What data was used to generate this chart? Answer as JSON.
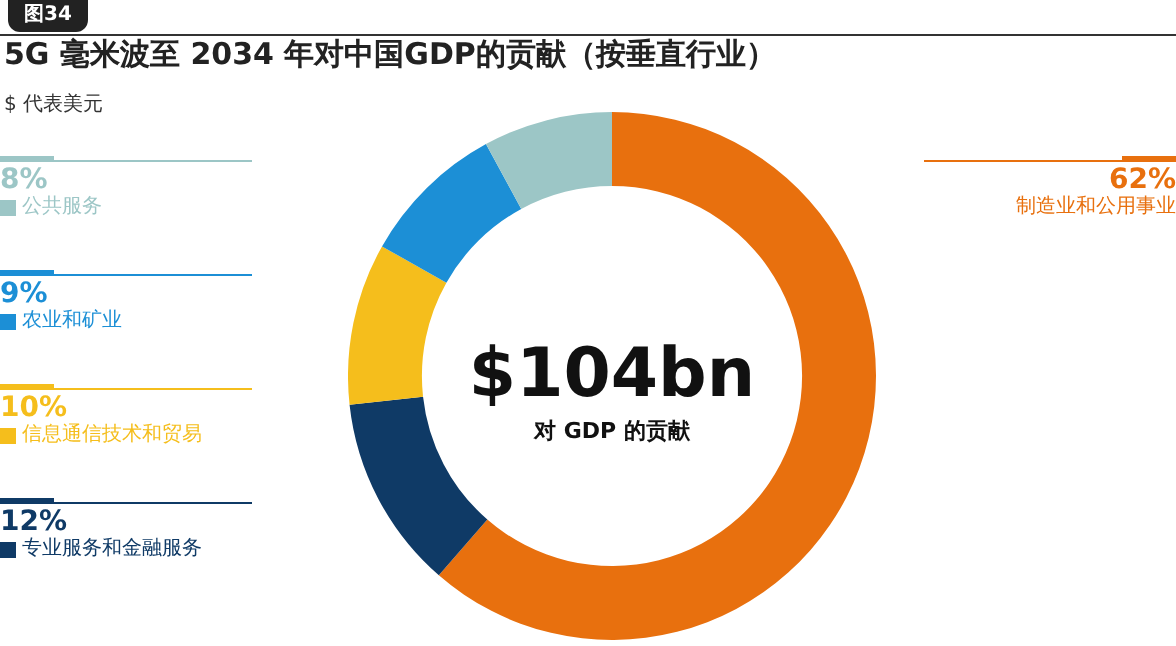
{
  "chart_data": {
    "type": "donut",
    "title": "5G 毫米波至 2034 年对中国GDP的贡献（按垂直行业）",
    "subtitle": "$ 代表美元",
    "categories": [
      "制造业和公用事业",
      "专业服务和金融服务",
      "信息通信技术和贸易",
      "农业和矿业",
      "公共服务"
    ],
    "values": [
      62,
      12,
      10,
      9,
      8
    ],
    "colors": [
      "#e8700e",
      "#0f3a66",
      "#f5be1c",
      "#1c8fd6",
      "#9cc6c6"
    ],
    "value_labels": [
      "62%",
      "12%",
      "10%",
      "9%",
      "8%"
    ],
    "annotations": [
      "图34",
      "$104bn",
      "对 GDP 的贡献"
    ],
    "legend": "left"
  }
}
